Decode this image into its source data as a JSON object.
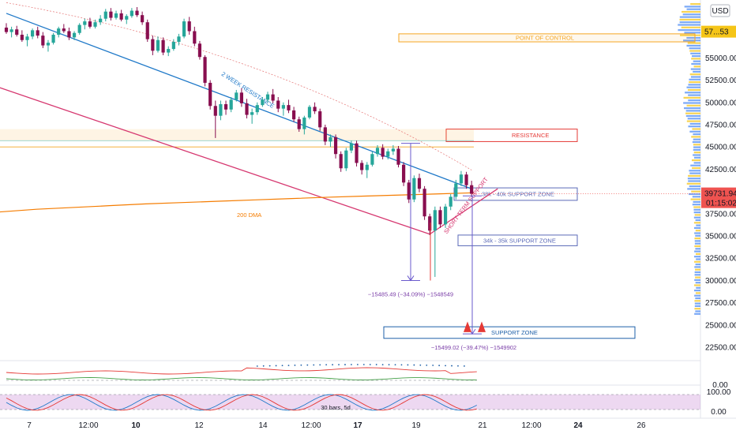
{
  "chart_data": {
    "type": "candlestick",
    "currency": "USD",
    "y_axis": {
      "min": 21000,
      "max": 61500,
      "ticks": [
        22500,
        25000,
        27500,
        30000,
        32500,
        35000,
        37500,
        40000,
        42500,
        45000,
        47500,
        50000,
        52500,
        55000
      ],
      "tick_labels": [
        "22500.00",
        "25000.00",
        "27500.00",
        "30000.00",
        "32500.00",
        "35000.00",
        "37500.00",
        "40000.00",
        "42500.00",
        "45000.00",
        "47500.00",
        "50000.00",
        "52500.00",
        "55000.00"
      ]
    },
    "x_axis": {
      "labels": [
        "7",
        "12:00",
        "10",
        "12",
        "14",
        "12:00",
        "17",
        "19",
        "21",
        "12:00",
        "24",
        "26"
      ],
      "bold_labels": [
        "10",
        "17",
        "24"
      ]
    },
    "last_price": {
      "value": 39731.94,
      "label": "39731.94",
      "countdown": "01:15:02",
      "color": "#ef5350"
    },
    "top_price_label": "57...53",
    "candles": [
      [
        58400,
        58900,
        57700,
        57900
      ],
      [
        57900,
        58500,
        57300,
        58200
      ],
      [
        58200,
        58600,
        57400,
        57600
      ],
      [
        57600,
        58100,
        56800,
        57000
      ],
      [
        57000,
        57700,
        56300,
        57400
      ],
      [
        57400,
        58300,
        57100,
        58100
      ],
      [
        58100,
        58500,
        57200,
        57500
      ],
      [
        57500,
        57900,
        56100,
        56400
      ],
      [
        56400,
        57000,
        55700,
        56700
      ],
      [
        56700,
        57800,
        56500,
        57600
      ],
      [
        57600,
        58500,
        57300,
        58300
      ],
      [
        58300,
        58800,
        57800,
        58000
      ],
      [
        58000,
        58400,
        57000,
        57300
      ],
      [
        57300,
        58000,
        57000,
        57800
      ],
      [
        57800,
        58900,
        57600,
        58700
      ],
      [
        58700,
        59400,
        58200,
        59100
      ],
      [
        59100,
        59500,
        58300,
        58500
      ],
      [
        58500,
        59300,
        58300,
        59000
      ],
      [
        59000,
        59800,
        58700,
        59400
      ],
      [
        59400,
        60500,
        59100,
        60200
      ],
      [
        60200,
        60600,
        59200,
        59500
      ],
      [
        59500,
        60300,
        59300,
        60000
      ],
      [
        60000,
        60400,
        59100,
        59300
      ],
      [
        59300,
        59900,
        58800,
        59700
      ],
      [
        59700,
        60600,
        59500,
        60300
      ],
      [
        60300,
        60700,
        59600,
        59800
      ],
      [
        59800,
        60200,
        58700,
        59000
      ],
      [
        59000,
        59300,
        56800,
        57100
      ],
      [
        57100,
        57500,
        55300,
        55800
      ],
      [
        55800,
        57400,
        55600,
        57000
      ],
      [
        57000,
        57300,
        55300,
        55600
      ],
      [
        55600,
        56300,
        55200,
        56000
      ],
      [
        56000,
        57100,
        55800,
        56800
      ],
      [
        56800,
        57700,
        56400,
        57400
      ],
      [
        57400,
        59400,
        57200,
        59100
      ],
      [
        59100,
        59600,
        57600,
        58000
      ],
      [
        58000,
        58500,
        56300,
        56600
      ],
      [
        56600,
        56900,
        54800,
        55100
      ],
      [
        55100,
        55300,
        51800,
        52200
      ],
      [
        52200,
        52500,
        49200,
        49600
      ],
      [
        49600,
        50200,
        46000,
        48500
      ],
      [
        48500,
        50200,
        48000,
        49800
      ],
      [
        49800,
        50200,
        48600,
        49200
      ],
      [
        49200,
        50600,
        48900,
        50300
      ],
      [
        50300,
        51400,
        50100,
        51100
      ],
      [
        51100,
        51600,
        49500,
        49900
      ],
      [
        49900,
        50400,
        48200,
        48600
      ],
      [
        48600,
        49300,
        47600,
        48900
      ],
      [
        48900,
        50000,
        48600,
        49700
      ],
      [
        49700,
        50600,
        49500,
        50300
      ],
      [
        50300,
        51200,
        50000,
        50900
      ],
      [
        50900,
        51500,
        49900,
        50200
      ],
      [
        50200,
        50600,
        48900,
        49300
      ],
      [
        49300,
        50000,
        48500,
        49700
      ],
      [
        49700,
        50300,
        48800,
        49100
      ],
      [
        49100,
        49500,
        47800,
        48100
      ],
      [
        48100,
        48400,
        46700,
        47000
      ],
      [
        47000,
        48500,
        46400,
        48300
      ],
      [
        48300,
        49700,
        48100,
        49500
      ],
      [
        49500,
        50000,
        48700,
        49000
      ],
      [
        49000,
        49300,
        46800,
        47200
      ],
      [
        47200,
        47500,
        45200,
        45600
      ],
      [
        45600,
        46400,
        45000,
        46100
      ],
      [
        46100,
        46400,
        43700,
        44200
      ],
      [
        44200,
        44500,
        42200,
        42600
      ],
      [
        42600,
        44900,
        42300,
        44600
      ],
      [
        44600,
        45700,
        44300,
        45400
      ],
      [
        45400,
        45700,
        42800,
        43200
      ],
      [
        43200,
        43500,
        41900,
        42400
      ],
      [
        42400,
        43300,
        41500,
        43000
      ],
      [
        43000,
        44500,
        42800,
        44200
      ],
      [
        44200,
        45200,
        43900,
        44900
      ],
      [
        44900,
        45300,
        43600,
        43900
      ],
      [
        43900,
        44800,
        43600,
        44500
      ],
      [
        44500,
        45200,
        44100,
        44800
      ],
      [
        44800,
        45100,
        42700,
        43000
      ],
      [
        43000,
        43300,
        40600,
        41000
      ],
      [
        41000,
        41300,
        38700,
        39100
      ],
      [
        39100,
        41800,
        38800,
        41500
      ],
      [
        41500,
        42000,
        39900,
        40300
      ],
      [
        40300,
        40600,
        36800,
        37200
      ],
      [
        37200,
        37500,
        35100,
        35600
      ],
      [
        35600,
        38300,
        30400,
        37900
      ],
      [
        37900,
        38300,
        35900,
        36300
      ],
      [
        36300,
        38600,
        35900,
        38300
      ],
      [
        38300,
        39700,
        37900,
        39400
      ],
      [
        39400,
        41300,
        39100,
        40900
      ],
      [
        40900,
        42300,
        40600,
        41900
      ],
      [
        41900,
        42200,
        40300,
        40700
      ],
      [
        40700,
        41200,
        39400,
        39732
      ]
    ],
    "dma_200": {
      "label": "200 DMA",
      "values": [
        37700,
        38000,
        38200,
        38400,
        38600,
        38750,
        38900,
        39050,
        39200,
        39350,
        39480,
        39600,
        39720,
        39850
      ]
    },
    "channel": {
      "resistance_label": "2 WEEK RESISTANCE",
      "support_label": "SHORT TERM SUPPORT",
      "upper": [
        [
          0,
          60000
        ],
        [
          89,
          40300
        ]
      ],
      "lower": [
        [
          -12,
          53800
        ],
        [
          81,
          35200
        ]
      ],
      "short_term_support": [
        [
          81,
          35200
        ],
        [
          94,
          40300
        ]
      ]
    },
    "zones": [
      {
        "label": "POINT OF CONTROL",
        "top": 57700,
        "bottom": 56800,
        "color": "#f5a623"
      },
      {
        "label": "RESISTANCE",
        "top": 47000,
        "bottom": 45600,
        "color": "#e53935"
      },
      {
        "label": "38k - 40k SUPPORT ZONE",
        "top": 40400,
        "bottom": 39000,
        "color": "#5b6ab8"
      },
      {
        "label": "34k - 35k SUPPORT ZONE",
        "top": 35100,
        "bottom": 33900,
        "color": "#5b6ab8"
      },
      {
        "label": "SUPPORT ZONE",
        "top": 24800,
        "bottom": 23500,
        "color": "#1e5fa8"
      }
    ],
    "measurements": [
      {
        "label": "−15485.49 (−34.09%) −1548549",
        "from": 45400,
        "to": 30000
      },
      {
        "label": "−15499.02 (−39.47%) −1549902",
        "from": 39500,
        "to": 24000
      }
    ],
    "oscillators": {
      "upper_panel": {
        "value_label": "0.00"
      },
      "stoch_rsi": {
        "label": "30 bars, 5d",
        "bands": [
          "100.00",
          "0.00"
        ]
      }
    }
  }
}
